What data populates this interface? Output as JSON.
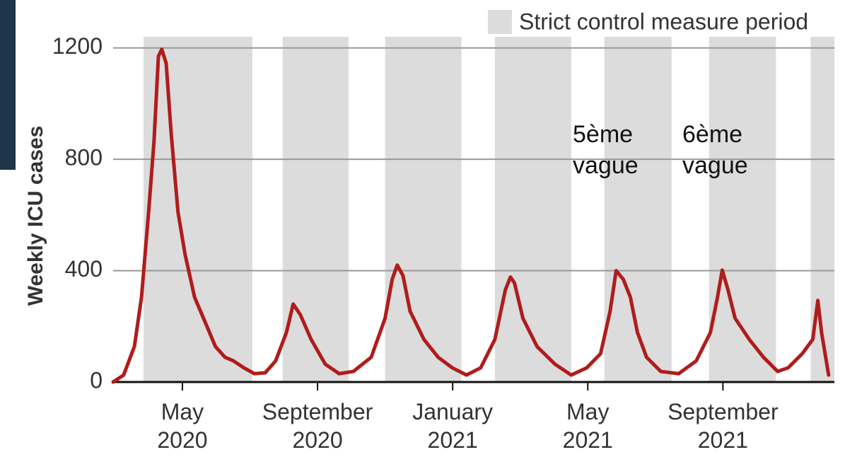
{
  "chart_data": {
    "type": "line",
    "y_label": "Weekly ICU cases",
    "legend_label": "Strict control measure period",
    "shade_color": "#dcdcdc",
    "shaded_periods": [
      [
        2.85,
        6.07
      ],
      [
        6.97,
        8.92
      ],
      [
        10.0,
        12.26
      ],
      [
        13.25,
        15.51
      ],
      [
        16.49,
        18.48
      ],
      [
        19.59,
        21.57
      ],
      [
        22.6,
        23.3
      ]
    ],
    "annotations": [
      "5ème\nvague",
      "6ème\nvague"
    ],
    "xlim": [
      1.95,
      23.3
    ],
    "xticks": [
      {
        "value": 4,
        "label": "May\n2020"
      },
      {
        "value": 8,
        "label": "September\n2020"
      },
      {
        "value": 12,
        "label": "January\n2021"
      },
      {
        "value": 16,
        "label": "May\n2021"
      },
      {
        "value": 20,
        "label": "September\n2021"
      }
    ],
    "ylim": [
      0,
      1240
    ],
    "yticks": [
      0,
      400,
      800,
      1200
    ],
    "grid": true,
    "x": [
      1.95,
      2.26,
      2.58,
      2.79,
      3.0,
      3.16,
      3.29,
      3.39,
      3.52,
      3.67,
      3.87,
      4.08,
      4.36,
      4.67,
      4.98,
      5.26,
      5.51,
      5.82,
      6.13,
      6.45,
      6.76,
      7.08,
      7.28,
      7.49,
      7.81,
      8.23,
      8.64,
      9.06,
      9.59,
      10.0,
      10.21,
      10.36,
      10.53,
      10.74,
      11.15,
      11.57,
      11.99,
      12.41,
      12.83,
      13.25,
      13.56,
      13.71,
      13.83,
      14.08,
      14.5,
      15.03,
      15.51,
      15.97,
      16.38,
      16.66,
      16.84,
      17.05,
      17.26,
      17.47,
      17.74,
      18.16,
      18.69,
      19.21,
      19.63,
      19.84,
      19.98,
      20.15,
      20.36,
      20.78,
      21.2,
      21.62,
      21.93,
      22.35,
      22.66,
      22.81,
      22.92,
      23.13
    ],
    "series": [
      {
        "color": "#b01c1c",
        "values": [
          0,
          25,
          128,
          305,
          610,
          865,
          1170,
          1195,
          1145,
          890,
          610,
          458,
          305,
          216,
          127,
          89,
          76,
          51,
          30,
          33,
          76,
          178,
          280,
          242,
          153,
          64,
          30,
          38,
          89,
          229,
          369,
          420,
          382,
          254,
          153,
          89,
          51,
          25,
          51,
          153,
          331,
          377,
          356,
          229,
          127,
          64,
          25,
          51,
          102,
          254,
          400,
          369,
          305,
          178,
          89,
          38,
          30,
          76,
          178,
          305,
          402,
          331,
          229,
          153,
          89,
          38,
          51,
          102,
          153,
          293,
          178,
          25
        ]
      }
    ]
  }
}
